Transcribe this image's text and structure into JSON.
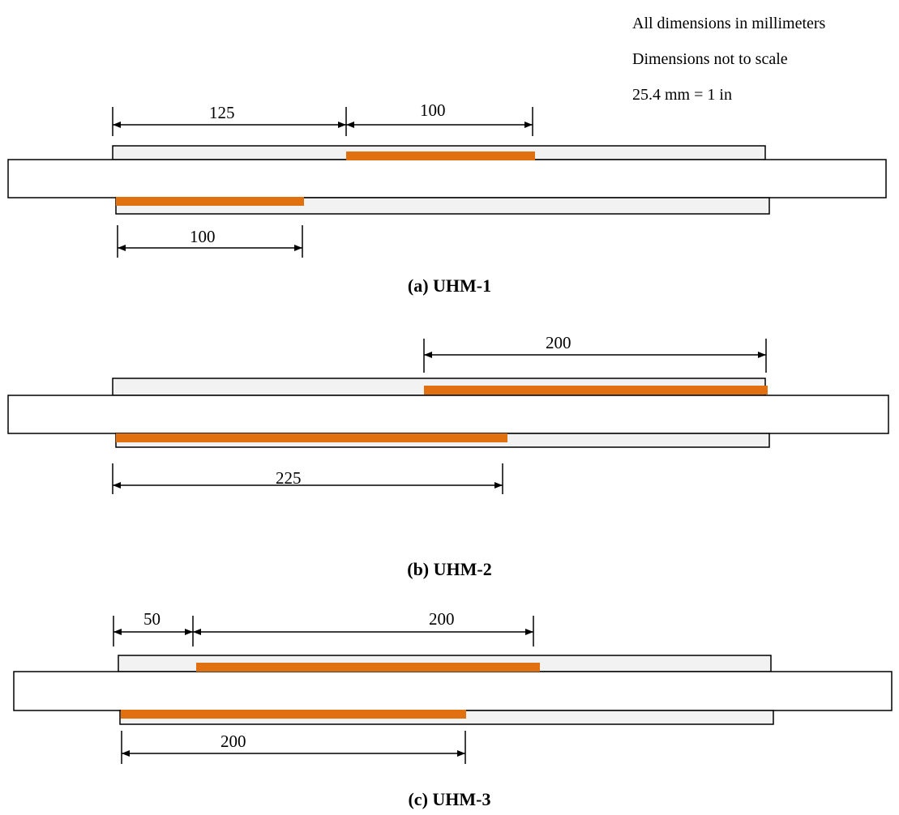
{
  "notes": [
    "All dimensions in millimeters",
    "Dimensions not to scale",
    "25.4 mm = 1 in"
  ],
  "colors": {
    "strip": "#e07010",
    "plate_fill": "#f2f2f2",
    "outline": "#000000"
  },
  "panels": [
    {
      "caption": "(a) UHM-1",
      "dimensions": [
        {
          "value": "125"
        },
        {
          "value": "100"
        },
        {
          "value": "100"
        }
      ]
    },
    {
      "caption": "(b) UHM-2",
      "dimensions": [
        {
          "value": "200"
        },
        {
          "value": "225"
        }
      ]
    },
    {
      "caption": "(c) UHM-3",
      "dimensions": [
        {
          "value": "50"
        },
        {
          "value": "200"
        },
        {
          "value": "200"
        }
      ]
    }
  ]
}
